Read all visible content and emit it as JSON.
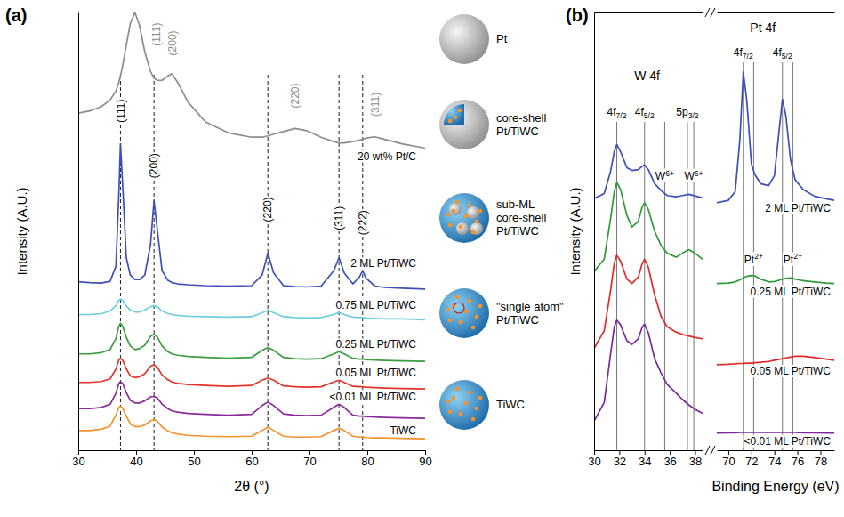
{
  "chart_data": [
    {
      "type": "line",
      "title": "(a)",
      "x_label": "2θ (°)",
      "y_label": "Intensity (A.U.)",
      "xlim": [
        30,
        90
      ],
      "xticks": [
        30,
        40,
        50,
        60,
        70,
        80,
        90
      ],
      "ylim": [
        0,
        100
      ],
      "tick_labels": "x",
      "x": [
        30,
        32,
        34,
        35.5,
        36.5,
        37,
        37.3,
        37.7,
        38.3,
        39,
        39.8,
        40.6,
        41.5,
        42.5,
        43.1,
        43.7,
        44.5,
        45.5,
        46.2,
        47.2,
        49,
        52,
        56,
        60,
        61.8,
        62.8,
        63.8,
        65.5,
        67.5,
        69.5,
        72,
        74.2,
        75.1,
        76,
        77.5,
        78.6,
        79.2,
        79.8,
        81.3,
        83,
        86,
        90
      ],
      "series": [
        {
          "name": "20 wt% Pt/C",
          "color": "#8c8c8c",
          "values": [
            77,
            77.5,
            78.5,
            80,
            82,
            84,
            85.5,
            88,
            92.5,
            97.5,
            100,
            97,
            91,
            86.5,
            85,
            84.5,
            84.5,
            85.5,
            86,
            84,
            79.5,
            75,
            72.5,
            71.5,
            71.5,
            71.8,
            72.2,
            72.8,
            73.5,
            73,
            71.5,
            70.5,
            70.2,
            70.2,
            70.5,
            70.8,
            71,
            71.3,
            71.6,
            71,
            70,
            69
          ]
        },
        {
          "name": "2 ML Pt/TiWC",
          "color": "#3f4fb8",
          "values": [
            38.5,
            38.3,
            38.2,
            38.6,
            42,
            58,
            70,
            60,
            44,
            40,
            39,
            39,
            40,
            47,
            57,
            50,
            41,
            38.8,
            38.3,
            38,
            37.8,
            37.6,
            37.5,
            37.6,
            40,
            45,
            40.5,
            37.6,
            37.4,
            37.3,
            37.5,
            41,
            44,
            40.5,
            38,
            39.5,
            41,
            39.3,
            37.5,
            37.2,
            37,
            36.8
          ]
        },
        {
          "name": "0.75 ML Pt/TiWC",
          "color": "#6ccfe0",
          "values": [
            31,
            31,
            31.2,
            31.8,
            33,
            34.2,
            34.5,
            34.2,
            33,
            32,
            31.6,
            31.6,
            32,
            32.8,
            33,
            32.7,
            31.8,
            31.2,
            31,
            30.8,
            30.6,
            30.5,
            30.4,
            30.5,
            31.4,
            32,
            31.4,
            30.5,
            30.3,
            30.2,
            30.3,
            31,
            31.5,
            31,
            30.4,
            30.3,
            30.3,
            30.2,
            30.1,
            30,
            30,
            29.8
          ]
        },
        {
          "name": "0.25 ML Pt/TiWC",
          "color": "#3a9d3f",
          "values": [
            22,
            22,
            22.3,
            23,
            25.5,
            28.3,
            29,
            28.3,
            25.8,
            23.8,
            23,
            23.2,
            24,
            26,
            26.5,
            25.8,
            23.8,
            22.5,
            22,
            21.7,
            21.4,
            21.2,
            21,
            21.2,
            22.8,
            23.5,
            22.8,
            21.2,
            20.9,
            20.8,
            20.9,
            22,
            22.5,
            22,
            21,
            20.8,
            20.8,
            20.7,
            20.6,
            20.5,
            20.4,
            20.3
          ]
        },
        {
          "name": "0.05 ML Pt/TiWC",
          "color": "#e5332a",
          "values": [
            15.5,
            15.5,
            15.7,
            16.3,
            18.5,
            20.6,
            21,
            20.5,
            18.6,
            17,
            16.6,
            16.8,
            17.5,
            19.2,
            19.5,
            18.9,
            17.2,
            16.1,
            15.6,
            15.3,
            15,
            14.8,
            14.6,
            14.8,
            16,
            16.5,
            16,
            14.7,
            14.5,
            14.4,
            14.5,
            15.6,
            16,
            15.5,
            14.6,
            14.5,
            14.5,
            14.4,
            14.3,
            14.2,
            14.1,
            14
          ]
        },
        {
          "name": "<0.01 ML Pt/TiWC",
          "color": "#8a2a9a",
          "values": [
            9.5,
            9.5,
            9.8,
            10.5,
            13,
            15.2,
            15.7,
            15.2,
            13.2,
            11.4,
            10.8,
            10.8,
            11.3,
            12.2,
            12.3,
            11.9,
            10.5,
            9.5,
            9,
            8.7,
            8.4,
            8.2,
            8,
            8.2,
            10.2,
            11,
            10.2,
            8.3,
            8,
            7.9,
            8,
            9.8,
            10.5,
            9.8,
            8,
            7.8,
            7.8,
            7.7,
            7.6,
            7.5,
            7.4,
            7.3
          ]
        },
        {
          "name": "TiWC",
          "color": "#f5922a",
          "values": [
            4.5,
            4.5,
            4.8,
            5.5,
            8,
            9.7,
            10,
            9.6,
            7.8,
            6,
            5.4,
            5.4,
            5.8,
            6.7,
            7,
            6.6,
            5.3,
            4.4,
            4,
            3.7,
            3.4,
            3.2,
            3.1,
            3.2,
            4.5,
            5.3,
            4.5,
            3.2,
            3,
            3,
            3.1,
            4.5,
            5,
            4.5,
            3.2,
            3,
            3,
            2.9,
            2.8,
            2.8,
            2.7,
            2.6
          ]
        }
      ],
      "reference_lines": [
        37.3,
        43.1,
        62.8,
        75.1,
        79.2
      ],
      "annotations": [
        {
          "text": "(111)",
          "x": 43.5,
          "y": 95,
          "color": "#8c8c8c"
        },
        {
          "text": "(200)",
          "x": 46.2,
          "y": 93,
          "color": "#8c8c8c"
        },
        {
          "text": "(220)",
          "x": 67.5,
          "y": 81,
          "color": "#8c8c8c"
        },
        {
          "text": "(311)",
          "x": 81.3,
          "y": 79,
          "color": "#8c8c8c"
        },
        {
          "text": "(111)",
          "x": 37.3,
          "y": 77.5
        },
        {
          "text": "(200)",
          "x": 43.1,
          "y": 65
        },
        {
          "text": "(220)",
          "x": 62.8,
          "y": 55
        },
        {
          "text": "(311)",
          "x": 75.1,
          "y": 53
        },
        {
          "text": "(222)",
          "x": 79.2,
          "y": 52
        }
      ]
    },
    {
      "type": "line",
      "title": "(b)",
      "y_label": "Intensity (A.U.)",
      "xlim": [
        30,
        38.6
      ],
      "xticks": [
        30,
        32,
        34,
        36,
        38
      ],
      "ylim": [
        0,
        110
      ],
      "tick_labels": "x",
      "x": [
        30,
        30.8,
        31.3,
        31.6,
        31.8,
        32.1,
        32.6,
        33,
        33.5,
        33.8,
        34,
        34.3,
        34.8,
        35.3,
        35.8,
        36.5,
        37,
        37.5,
        38,
        38.6
      ],
      "series": [
        {
          "color": "#3f4fb8",
          "values": [
            63.2,
            64.5,
            70,
            75,
            76.8,
            75,
            71,
            70.3,
            70.5,
            71.3,
            71.7,
            70.5,
            67,
            65.3,
            64,
            63.7,
            64,
            64.3,
            63.9,
            63.4
          ]
        },
        {
          "color": "#2f9a3a",
          "values": [
            44.9,
            48,
            58,
            65,
            67.3,
            65.5,
            59,
            56.1,
            57.5,
            61,
            62.2,
            60.5,
            55,
            51.5,
            49.5,
            48.5,
            49.5,
            50.4,
            49.5,
            48
          ]
        },
        {
          "color": "#e02a28",
          "values": [
            25.6,
            30,
            40,
            47,
            49,
            47.5,
            43,
            41.9,
            43.5,
            46.8,
            48,
            46,
            39,
            33.7,
            31,
            29.7,
            29.1,
            28.7,
            28.3,
            28
          ]
        },
        {
          "color": "#7a2a9a",
          "values": [
            7.3,
            12,
            24,
            31,
            32.7,
            31.5,
            27.5,
            26.6,
            28,
            30.8,
            31.7,
            29.5,
            23,
            19.5,
            16.5,
            14.4,
            12.8,
            11.4,
            10.3,
            9.3
          ]
        }
      ],
      "reference_lines": [
        31.8,
        34.0,
        35.6,
        37.4,
        37.9
      ],
      "annotations": [
        {
          "text": "W 4f",
          "x": 34.2,
          "y": 93
        },
        {
          "text": "4f7/2",
          "x": 31.8,
          "y": 84
        },
        {
          "text": "4f5/2",
          "x": 34.0,
          "y": 84
        },
        {
          "text": "5p3/2",
          "x": 37.4,
          "y": 84
        },
        {
          "text": "W6+",
          "x": 35.6,
          "y": 68
        },
        {
          "text": "W6+",
          "x": 37.9,
          "y": 68
        }
      ]
    },
    {
      "type": "line",
      "x_label": "Binding Energy (eV)",
      "xlim": [
        69,
        79.2
      ],
      "xticks": [
        70,
        72,
        74,
        76,
        78
      ],
      "ylim": [
        0,
        110
      ],
      "tick_labels": "x",
      "x": [
        69,
        70,
        70.6,
        71,
        71.3,
        71.6,
        72,
        72.3,
        72.8,
        73.5,
        74,
        74.4,
        74.7,
        75,
        75.4,
        75.8,
        76.5,
        77.5,
        78.5,
        79.2
      ],
      "series": [
        {
          "name": "2 ML Pt/TiWC",
          "color": "#3f4fb8",
          "values": [
            62.2,
            62.8,
            65,
            78,
            95,
            88,
            72,
            69.3,
            67,
            66.5,
            69,
            80,
            88.2,
            84,
            73,
            68,
            65.5,
            63.8,
            63.2,
            62.8
          ]
        },
        {
          "name": "0.25 ML Pt/TiWC",
          "color": "#2f9a3a",
          "values": [
            41.9,
            42,
            42.3,
            42.8,
            43.3,
            43.7,
            43.9,
            43.8,
            43,
            42.3,
            42.4,
            42.7,
            43,
            43.2,
            43.3,
            43,
            42.6,
            42.3,
            42,
            41.9
          ]
        },
        {
          "name": "0.05 ML Pt/TiWC",
          "color": "#e02a28",
          "values": [
            21.5,
            21.6,
            21.7,
            21.8,
            21.8,
            21.9,
            21.9,
            22,
            22.1,
            22.3,
            22.6,
            22.8,
            23,
            23.2,
            23.4,
            23.6,
            23.6,
            23.3,
            22.9,
            22.6
          ]
        },
        {
          "name": "<0.01 ML Pt/TiWC",
          "color": "#7a2a9a",
          "values": [
            4.3,
            4.4,
            4.4,
            4.5,
            4.5,
            4.5,
            4.5,
            4.5,
            4.5,
            4.5,
            4.5,
            4.5,
            4.5,
            4.5,
            4.5,
            4.5,
            4.4,
            4.4,
            4.3,
            4.3
          ]
        }
      ],
      "reference_lines": [
        71.3,
        72.2,
        74.7,
        75.6
      ],
      "annotations": [
        {
          "text": "Pt 4f",
          "x": 73.0,
          "y": 105
        },
        {
          "text": "4f7/2",
          "x": 71.3,
          "y": 99
        },
        {
          "text": "4f5/2",
          "x": 74.7,
          "y": 99
        },
        {
          "text": "Pt2+",
          "x": 72.2,
          "y": 47
        },
        {
          "text": "Pt2+",
          "x": 75.6,
          "y": 47
        }
      ]
    }
  ],
  "schematic": {
    "labels": [
      "Pt",
      "core-shell Pt/TiWC",
      "sub-ML core-shell Pt/TiWC",
      "\"single atom\" Pt/TiWC",
      "TiWC"
    ]
  }
}
